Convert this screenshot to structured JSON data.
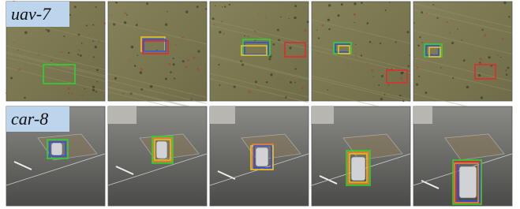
{
  "rows": [
    {
      "label": "uav-7"
    },
    {
      "label": "car-8"
    }
  ]
}
